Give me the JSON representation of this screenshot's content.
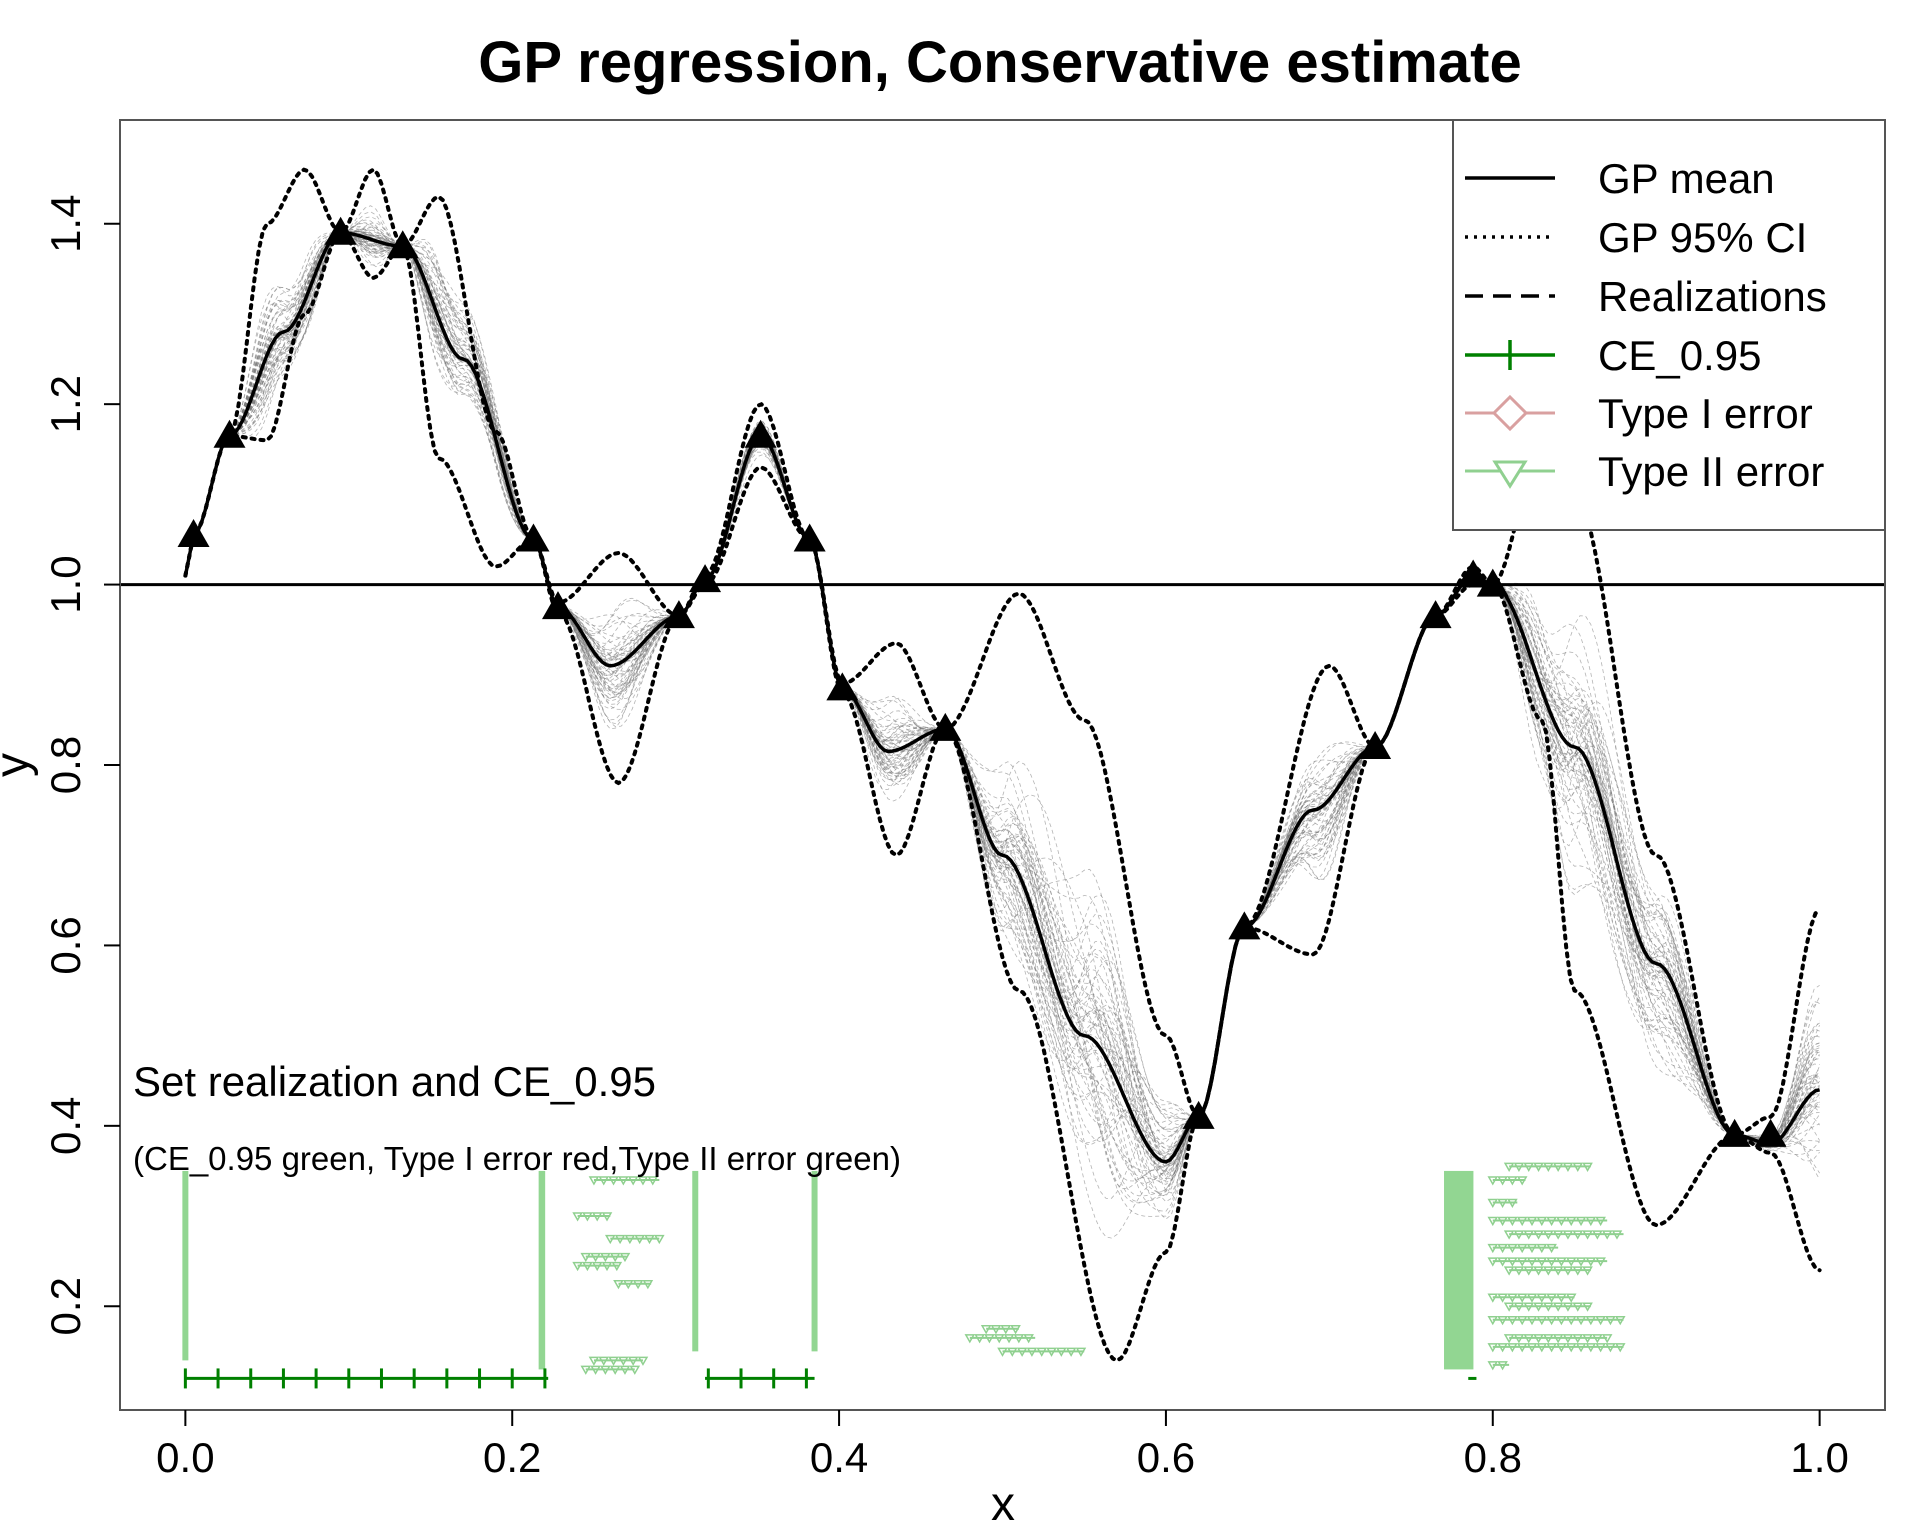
{
  "chart_data": {
    "type": "line",
    "title": "GP regression, Conservative estimate",
    "xlabel": "x",
    "ylabel": "y",
    "xlim": [
      -0.04,
      1.04
    ],
    "ylim": [
      0.085,
      1.515
    ],
    "xticks": [
      0.0,
      0.2,
      0.4,
      0.6,
      0.8,
      1.0
    ],
    "xtick_labels": [
      "0.0",
      "0.2",
      "0.4",
      "0.6",
      "0.8",
      "1.0"
    ],
    "yticks": [
      0.2,
      0.4,
      0.6,
      0.8,
      1.0,
      1.2,
      1.4
    ],
    "ytick_labels": [
      "0.2",
      "0.4",
      "0.6",
      "0.8",
      "1.0",
      "1.2",
      "1.4"
    ],
    "threshold": 1.0,
    "legend": [
      {
        "label": "GP mean",
        "style": "solid",
        "color": "#000000"
      },
      {
        "label": "GP 95% CI",
        "style": "dotted",
        "color": "#000000"
      },
      {
        "label": "Realizations",
        "style": "dashed",
        "color": "#000000"
      },
      {
        "label": "CE_0.95",
        "style": "plus",
        "color": "#008000"
      },
      {
        "label": "Type I error",
        "style": "diamond",
        "color": "#d9a0a0"
      },
      {
        "label": "Type II error",
        "style": "triangle-down",
        "color": "#90d090"
      }
    ],
    "annotation_title": "Set realization and CE_0.95",
    "annotation_subtitle": "(CE_0.95 green, Type I error red,Type II error green)",
    "observations": {
      "x": [
        0.005,
        0.027,
        0.095,
        0.133,
        0.213,
        0.228,
        0.302,
        0.318,
        0.352,
        0.382,
        0.402,
        0.465,
        0.62,
        0.648,
        0.728,
        0.765,
        0.788,
        0.8,
        0.948,
        0.97
      ],
      "y": [
        1.055,
        1.165,
        1.39,
        1.375,
        1.05,
        0.975,
        0.965,
        1.005,
        1.165,
        1.05,
        0.885,
        0.84,
        0.41,
        0.62,
        0.82,
        0.965,
        1.01,
        1.0,
        0.39,
        0.39
      ]
    },
    "gp_mean": {
      "x": [
        0.0,
        0.005,
        0.027,
        0.06,
        0.095,
        0.133,
        0.17,
        0.213,
        0.228,
        0.26,
        0.302,
        0.318,
        0.352,
        0.382,
        0.402,
        0.43,
        0.465,
        0.5,
        0.55,
        0.6,
        0.62,
        0.648,
        0.69,
        0.728,
        0.765,
        0.788,
        0.8,
        0.85,
        0.9,
        0.948,
        0.97,
        1.0
      ],
      "y": [
        1.01,
        1.055,
        1.165,
        1.28,
        1.39,
        1.375,
        1.25,
        1.05,
        0.975,
        0.91,
        0.965,
        1.005,
        1.165,
        1.05,
        0.885,
        0.815,
        0.84,
        0.7,
        0.5,
        0.36,
        0.41,
        0.62,
        0.75,
        0.82,
        0.965,
        1.01,
        1.0,
        0.82,
        0.58,
        0.39,
        0.38,
        0.44
      ]
    },
    "ci_upper": {
      "x": [
        0.0,
        0.005,
        0.027,
        0.05,
        0.073,
        0.095,
        0.115,
        0.133,
        0.155,
        0.19,
        0.213,
        0.228,
        0.265,
        0.302,
        0.318,
        0.352,
        0.382,
        0.402,
        0.435,
        0.465,
        0.51,
        0.55,
        0.6,
        0.62,
        0.648,
        0.7,
        0.728,
        0.765,
        0.788,
        0.8,
        0.83,
        0.85,
        0.9,
        0.948,
        0.97,
        1.0
      ],
      "y": [
        1.01,
        1.055,
        1.165,
        1.4,
        1.46,
        1.39,
        1.46,
        1.375,
        1.43,
        1.17,
        1.05,
        0.98,
        1.035,
        0.965,
        1.01,
        1.2,
        1.05,
        0.89,
        0.935,
        0.84,
        0.99,
        0.85,
        0.5,
        0.41,
        0.62,
        0.91,
        0.82,
        0.965,
        1.02,
        1.0,
        1.15,
        1.1,
        0.7,
        0.39,
        0.41,
        0.64
      ]
    },
    "ci_lower": {
      "x": [
        0.0,
        0.005,
        0.027,
        0.05,
        0.073,
        0.095,
        0.115,
        0.133,
        0.155,
        0.19,
        0.213,
        0.228,
        0.265,
        0.302,
        0.318,
        0.352,
        0.382,
        0.402,
        0.435,
        0.465,
        0.51,
        0.57,
        0.6,
        0.62,
        0.648,
        0.69,
        0.728,
        0.765,
        0.788,
        0.8,
        0.83,
        0.85,
        0.9,
        0.948,
        0.97,
        1.0
      ],
      "y": [
        1.01,
        1.055,
        1.165,
        1.16,
        1.3,
        1.39,
        1.34,
        1.375,
        1.14,
        1.02,
        1.05,
        0.97,
        0.78,
        0.965,
        1.0,
        1.13,
        1.05,
        0.88,
        0.7,
        0.84,
        0.55,
        0.14,
        0.26,
        0.41,
        0.62,
        0.59,
        0.82,
        0.965,
        1.0,
        1.0,
        0.85,
        0.55,
        0.29,
        0.39,
        0.37,
        0.24
      ]
    },
    "set_realization_bands": [
      {
        "x_from": 0.0,
        "x_to": 0.003,
        "y_from": 0.14,
        "y_to": 0.35
      },
      {
        "x_from": 0.218,
        "x_to": 0.222,
        "y_from": 0.13,
        "y_to": 0.35
      },
      {
        "x_from": 0.312,
        "x_to": 0.315,
        "y_from": 0.15,
        "y_to": 0.35
      },
      {
        "x_from": 0.385,
        "x_to": 0.388,
        "y_from": 0.15,
        "y_to": 0.35
      },
      {
        "x_from": 0.772,
        "x_to": 0.79,
        "y_from": 0.13,
        "y_to": 0.35
      }
    ],
    "ce_0_95": {
      "y": 0.12,
      "segments": [
        [
          0.0,
          0.222
        ],
        [
          0.318,
          0.385
        ],
        [
          0.785,
          0.79
        ]
      ],
      "markers": [
        0.0,
        0.02,
        0.04,
        0.06,
        0.08,
        0.1,
        0.12,
        0.14,
        0.16,
        0.18,
        0.2,
        0.22,
        0.32,
        0.34,
        0.36,
        0.38
      ]
    },
    "type2_errors": [
      {
        "x_from": 0.25,
        "x_to": 0.29,
        "y": 0.34
      },
      {
        "x_from": 0.24,
        "x_to": 0.26,
        "y": 0.3
      },
      {
        "x_from": 0.26,
        "x_to": 0.29,
        "y": 0.275
      },
      {
        "x_from": 0.245,
        "x_to": 0.27,
        "y": 0.255
      },
      {
        "x_from": 0.24,
        "x_to": 0.265,
        "y": 0.245
      },
      {
        "x_from": 0.265,
        "x_to": 0.285,
        "y": 0.225
      },
      {
        "x_from": 0.25,
        "x_to": 0.28,
        "y": 0.14
      },
      {
        "x_from": 0.245,
        "x_to": 0.275,
        "y": 0.13
      },
      {
        "x_from": 0.49,
        "x_to": 0.51,
        "y": 0.175
      },
      {
        "x_from": 0.48,
        "x_to": 0.52,
        "y": 0.165
      },
      {
        "x_from": 0.5,
        "x_to": 0.55,
        "y": 0.15
      },
      {
        "x_from": 0.81,
        "x_to": 0.86,
        "y": 0.355
      },
      {
        "x_from": 0.8,
        "x_to": 0.82,
        "y": 0.34
      },
      {
        "x_from": 0.8,
        "x_to": 0.815,
        "y": 0.315
      },
      {
        "x_from": 0.8,
        "x_to": 0.87,
        "y": 0.295
      },
      {
        "x_from": 0.81,
        "x_to": 0.88,
        "y": 0.28
      },
      {
        "x_from": 0.8,
        "x_to": 0.84,
        "y": 0.265
      },
      {
        "x_from": 0.8,
        "x_to": 0.87,
        "y": 0.25
      },
      {
        "x_from": 0.81,
        "x_to": 0.86,
        "y": 0.24
      },
      {
        "x_from": 0.8,
        "x_to": 0.85,
        "y": 0.21
      },
      {
        "x_from": 0.81,
        "x_to": 0.86,
        "y": 0.2
      },
      {
        "x_from": 0.8,
        "x_to": 0.88,
        "y": 0.185
      },
      {
        "x_from": 0.81,
        "x_to": 0.87,
        "y": 0.165
      },
      {
        "x_from": 0.8,
        "x_to": 0.88,
        "y": 0.155
      },
      {
        "x_from": 0.8,
        "x_to": 0.81,
        "y": 0.135
      }
    ],
    "realization_count": 60
  }
}
